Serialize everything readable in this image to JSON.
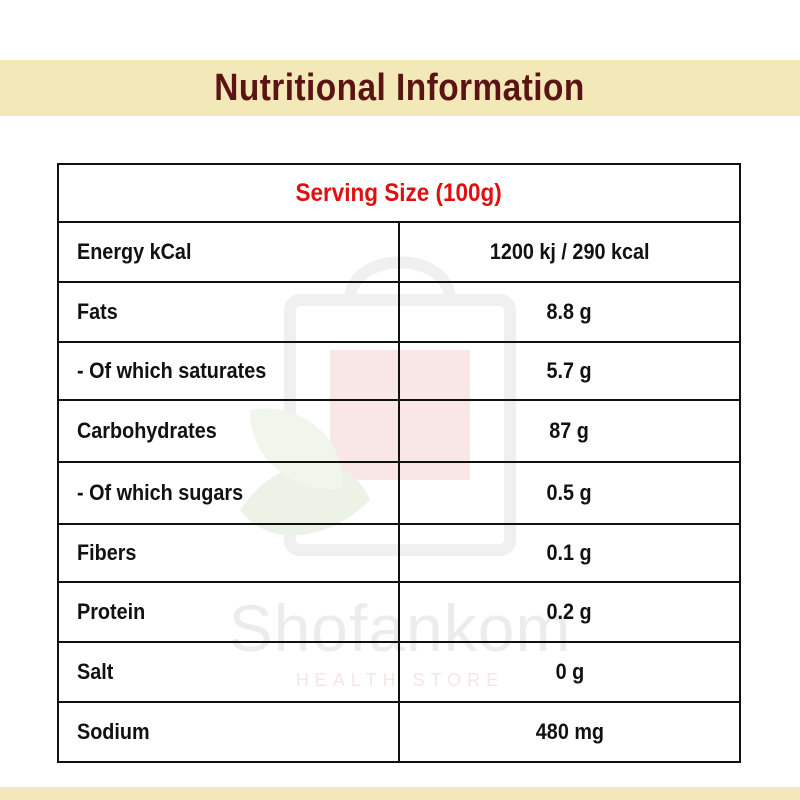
{
  "header": {
    "title": "Nutritional Information"
  },
  "table": {
    "serving": "Serving Size (100g)",
    "rows": [
      {
        "label": "Energy kCal",
        "value": "1200 kj / 290 kcal"
      },
      {
        "label": "Fats",
        "value": "8.8 g"
      },
      {
        "label": "- Of which saturates",
        "value": "5.7 g"
      },
      {
        "label": "Carbohydrates",
        "value": "87 g"
      },
      {
        "label": "- Of which sugars",
        "value": "0.5 g"
      },
      {
        "label": "Fibers",
        "value": "0.1 g"
      },
      {
        "label": "Protein",
        "value": "0.2 g"
      },
      {
        "label": "Salt",
        "value": "0 g"
      },
      {
        "label": "Sodium",
        "value": "480 mg"
      }
    ]
  },
  "watermark": {
    "brand": "Shofankom",
    "subtitle": "HEALTH STORE"
  },
  "colors": {
    "banner": "#f3e8b7",
    "title": "#5a1413",
    "serving": "#e01010"
  }
}
